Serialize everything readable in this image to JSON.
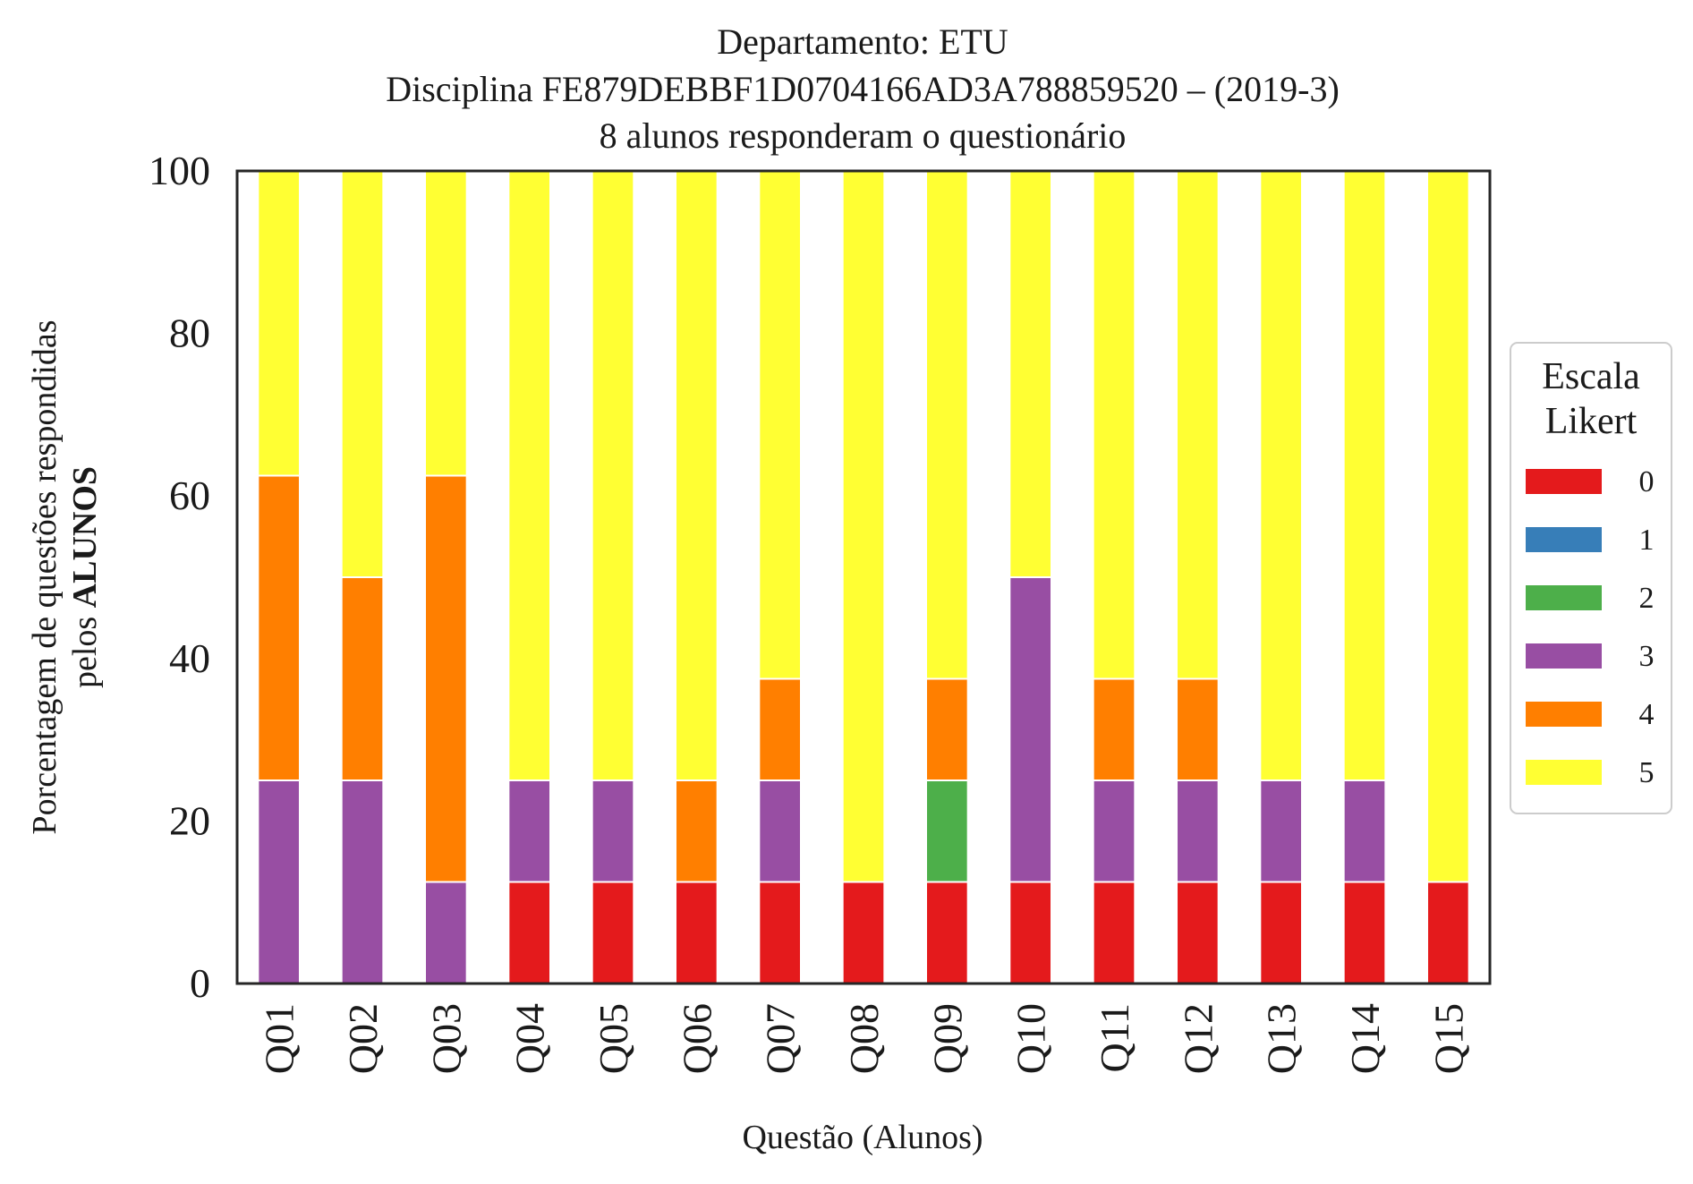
{
  "chart_data": {
    "type": "bar",
    "stacked": true,
    "title": [
      "Departamento: ETU",
      "Disciplina FE879DEBBF1D0704166AD3A788859520 – (2019-3)",
      "8 alunos responderam o questionário"
    ],
    "xlabel": "Questão (Alunos)",
    "ylabel": {
      "line1": "Porcentagem de questões respondidas",
      "line2_prefix": "pelos ",
      "line2_bold": "ALUNOS"
    },
    "ylim": [
      0,
      100
    ],
    "yticks": [
      0,
      20,
      40,
      60,
      80,
      100
    ],
    "grid": false,
    "legend": {
      "title": [
        "Escala",
        "Likert"
      ],
      "placement": "center-right-outside"
    },
    "categories": [
      "Q01",
      "Q02",
      "Q03",
      "Q04",
      "Q05",
      "Q06",
      "Q07",
      "Q08",
      "Q09",
      "Q10",
      "Q11",
      "Q12",
      "Q13",
      "Q14",
      "Q15"
    ],
    "series": [
      {
        "name": "0",
        "color": "#e41a1c",
        "values": [
          0,
          0,
          0,
          12.5,
          12.5,
          12.5,
          12.5,
          12.5,
          12.5,
          12.5,
          12.5,
          12.5,
          12.5,
          12.5,
          12.5
        ]
      },
      {
        "name": "1",
        "color": "#377eb8",
        "values": [
          0,
          0,
          0,
          0,
          0,
          0,
          0,
          0,
          0,
          0,
          0,
          0,
          0,
          0,
          0
        ]
      },
      {
        "name": "2",
        "color": "#4daf4a",
        "values": [
          0,
          0,
          0,
          0,
          0,
          0,
          0,
          0,
          12.5,
          0,
          0,
          0,
          0,
          0,
          0
        ]
      },
      {
        "name": "3",
        "color": "#984ea3",
        "values": [
          25,
          25,
          12.5,
          12.5,
          12.5,
          0,
          12.5,
          0,
          0,
          37.5,
          12.5,
          12.5,
          12.5,
          12.5,
          0
        ]
      },
      {
        "name": "4",
        "color": "#ff7f00",
        "values": [
          37.5,
          25,
          50,
          0,
          0,
          12.5,
          12.5,
          0,
          12.5,
          0,
          12.5,
          12.5,
          0,
          0,
          0
        ]
      },
      {
        "name": "5",
        "color": "#ffff33",
        "values": [
          37.5,
          50,
          37.5,
          75,
          75,
          75,
          62.5,
          87.5,
          62.5,
          50,
          62.5,
          62.5,
          75,
          75,
          87.5
        ]
      }
    ]
  }
}
